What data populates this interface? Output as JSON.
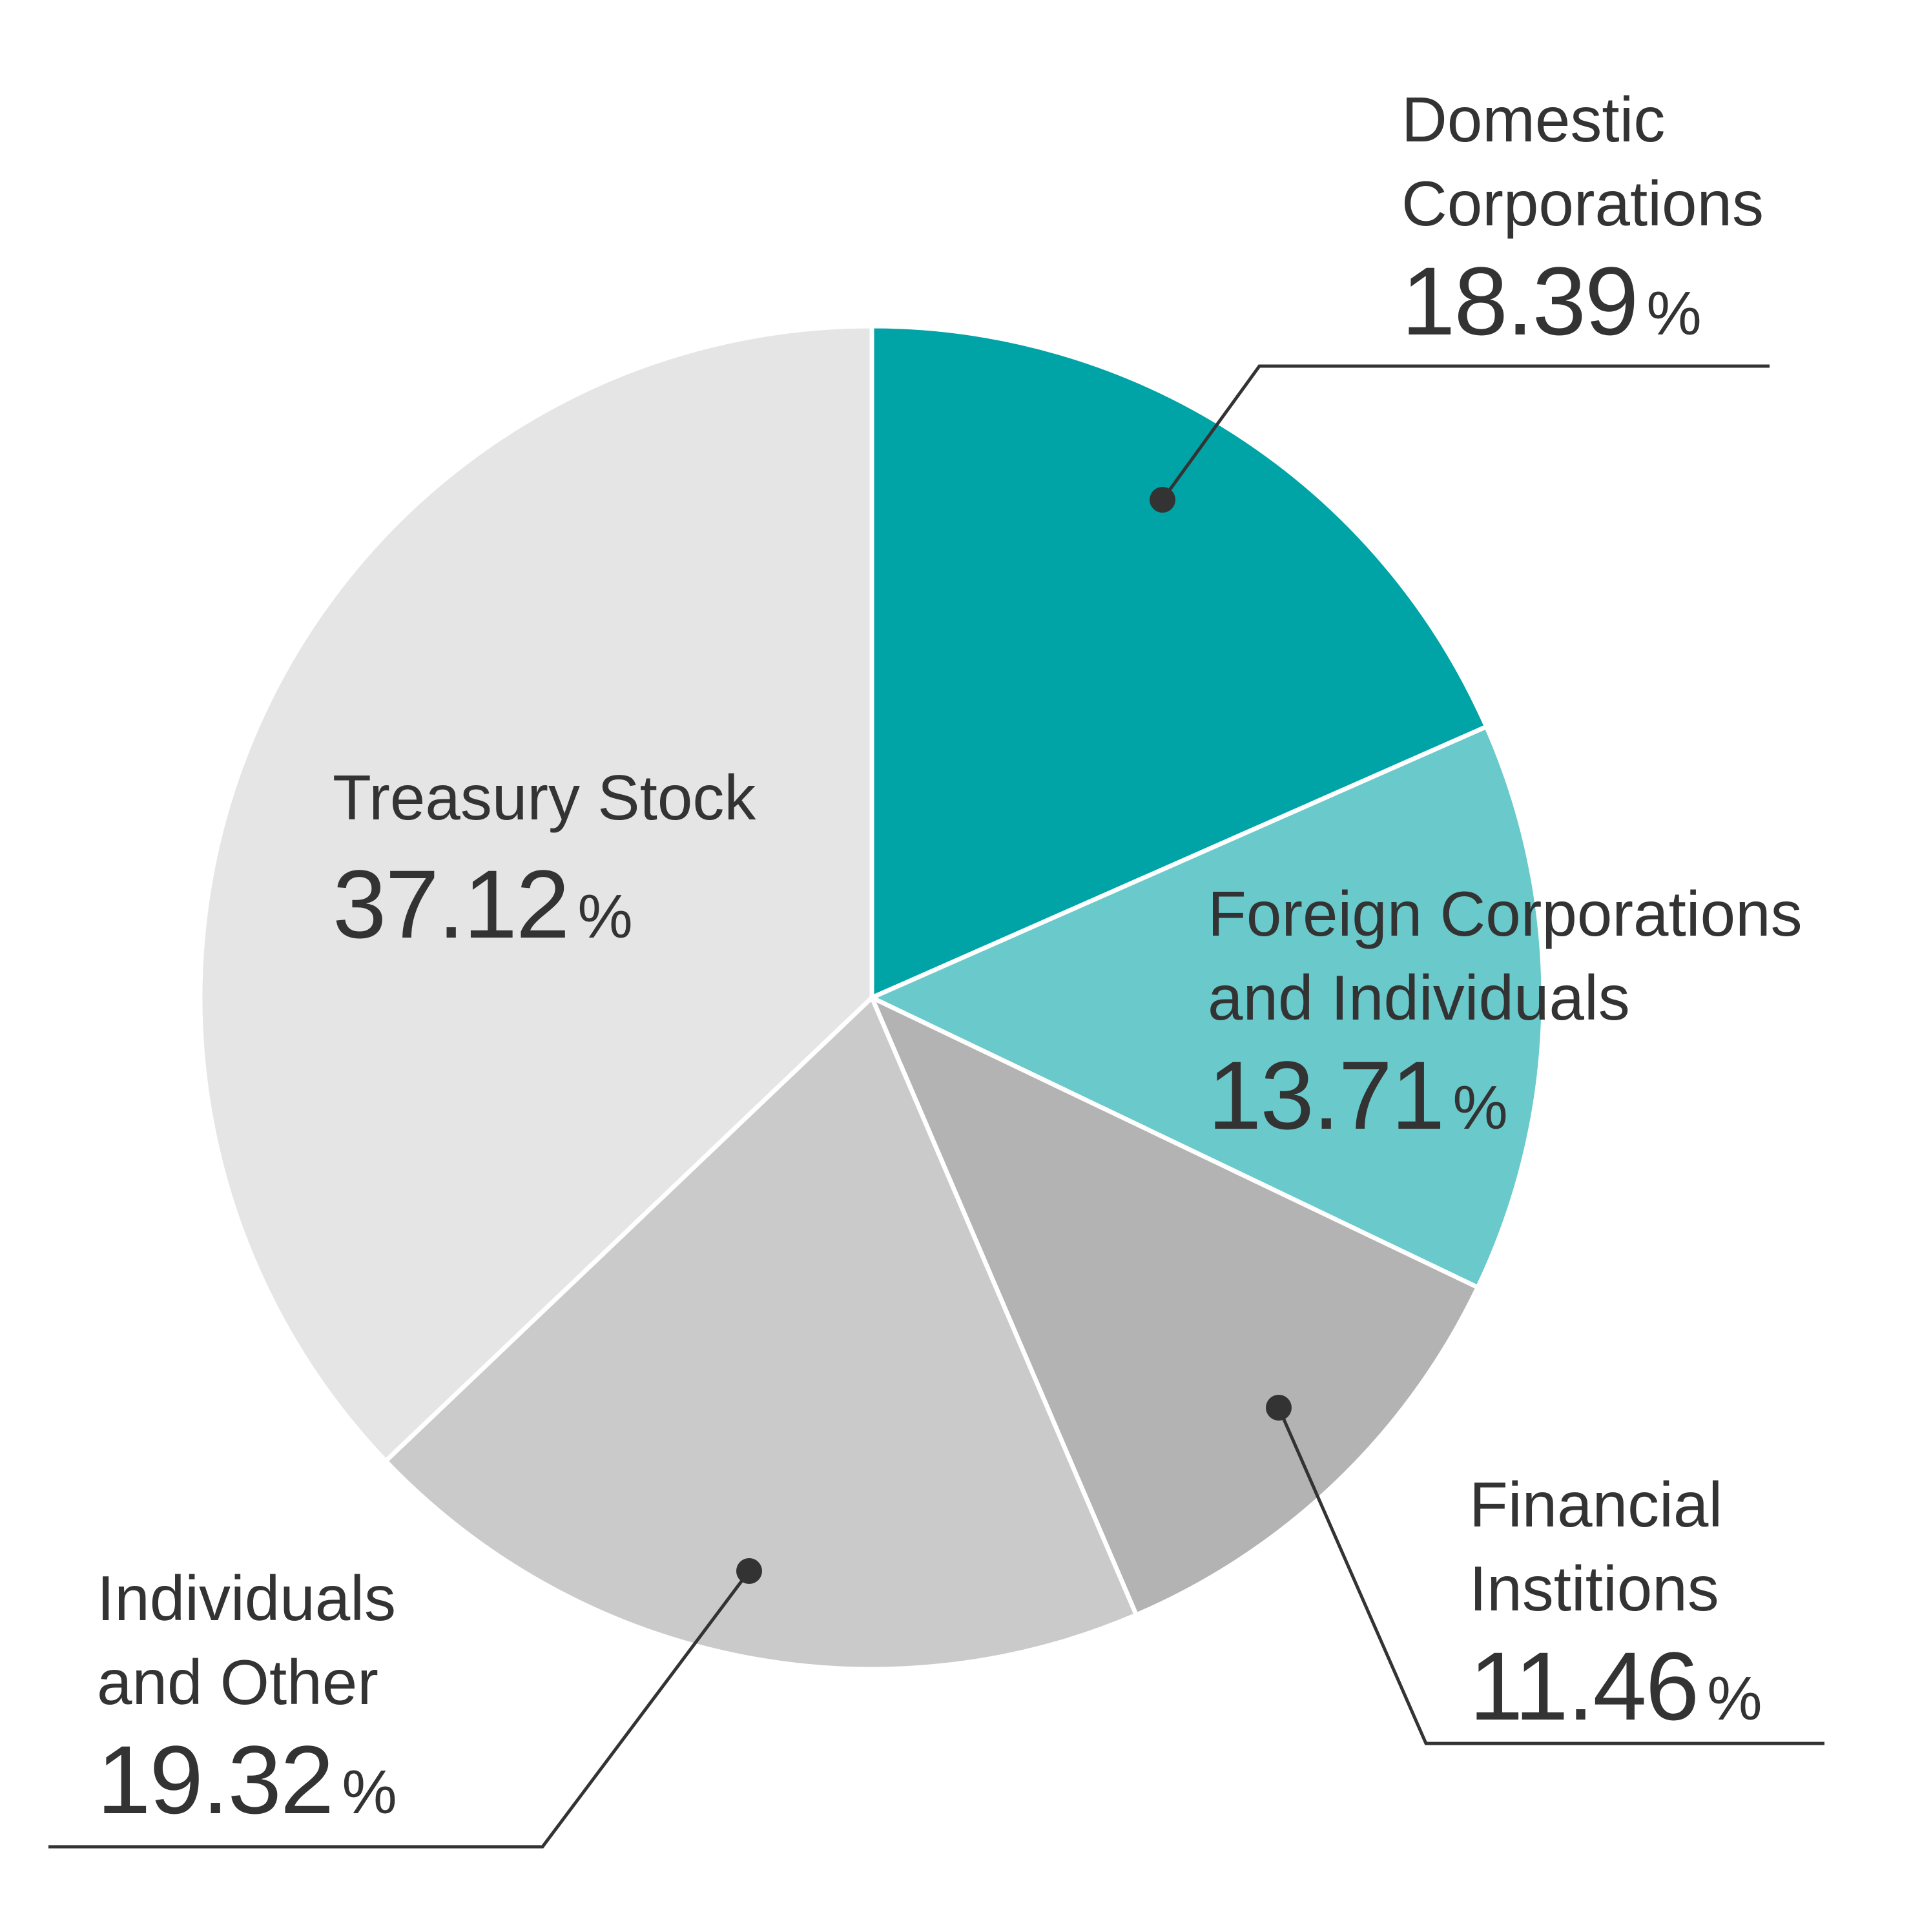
{
  "chart_data": {
    "type": "pie",
    "title": "",
    "start_angle_deg": 0,
    "direction": "clockwise",
    "slices": [
      {
        "label_lines": [
          "Domestic",
          "Corporations"
        ],
        "value": 18.39,
        "value_text": "18.39",
        "unit": "%",
        "color": "#00a3a6"
      },
      {
        "label_lines": [
          "Foreign Corporations",
          "and Individuals"
        ],
        "value": 13.71,
        "value_text": "13.71",
        "unit": "%",
        "color": "#69c9cb"
      },
      {
        "label_lines": [
          "Financial",
          "Institions"
        ],
        "value": 11.46,
        "value_text": "11.46",
        "unit": "%",
        "color": "#b3b3b3"
      },
      {
        "label_lines": [
          "Individuals",
          "and Other"
        ],
        "value": 19.32,
        "value_text": "19.32",
        "unit": "%",
        "color": "#cacaca"
      },
      {
        "label_lines": [
          "Treasury Stock"
        ],
        "value": 37.12,
        "value_text": "37.12",
        "unit": "%",
        "color": "#e5e5e5"
      }
    ],
    "separator_color": "#ffffff",
    "leader_color": "#333333",
    "text_color": "#333333"
  }
}
